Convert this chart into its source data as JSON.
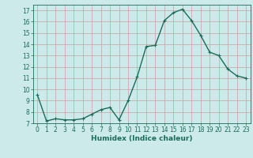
{
  "x": [
    0,
    1,
    2,
    3,
    4,
    5,
    6,
    7,
    8,
    9,
    10,
    11,
    12,
    13,
    14,
    15,
    16,
    17,
    18,
    19,
    20,
    21,
    22,
    23
  ],
  "y": [
    9.5,
    7.2,
    7.4,
    7.3,
    7.3,
    7.4,
    7.8,
    8.2,
    8.4,
    7.3,
    9.0,
    11.1,
    13.8,
    13.9,
    16.1,
    16.8,
    17.1,
    16.1,
    14.8,
    13.3,
    13.0,
    11.8,
    11.2,
    11.0
  ],
  "xlim": [
    -0.5,
    23.5
  ],
  "ylim": [
    7,
    17.5
  ],
  "yticks": [
    7,
    8,
    9,
    10,
    11,
    12,
    13,
    14,
    15,
    16,
    17
  ],
  "xticks": [
    0,
    1,
    2,
    3,
    4,
    5,
    6,
    7,
    8,
    9,
    10,
    11,
    12,
    13,
    14,
    15,
    16,
    17,
    18,
    19,
    20,
    21,
    22,
    23
  ],
  "xlabel": "Humidex (Indice chaleur)",
  "line_color": "#1a6b5a",
  "bg_color": "#cceaea",
  "grid_color": "#c8a0a0",
  "marker": "+",
  "marker_size": 3,
  "line_width": 1.0,
  "xlabel_fontsize": 6.5,
  "tick_fontsize": 5.5
}
